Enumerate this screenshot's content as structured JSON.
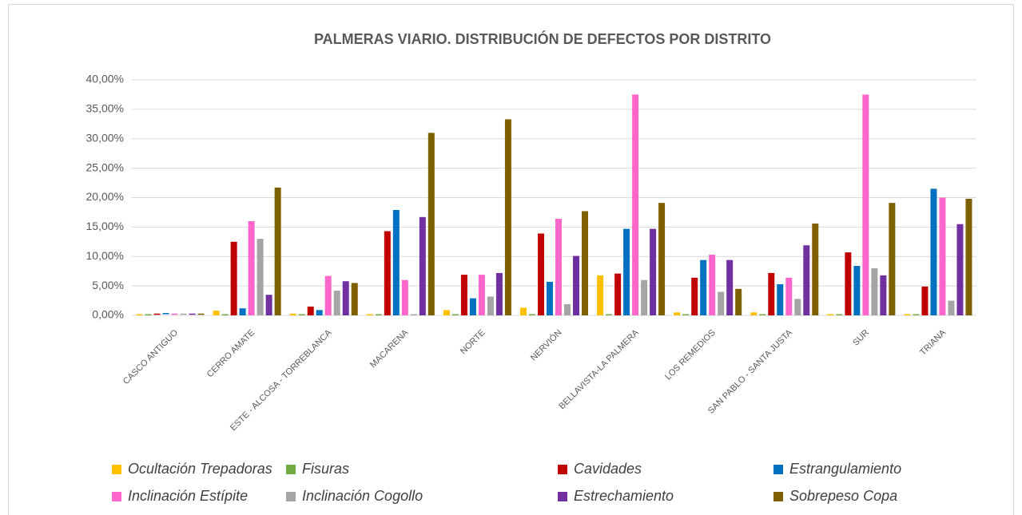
{
  "chart_data": {
    "type": "bar",
    "title": "PALMERAS VIARIO. DISTRIBUCIÓN DE DEFECTOS POR DISTRITO",
    "categories": [
      "CASCO ANTIGUO",
      "CERRO AMATE",
      "ESTE - ALCOSA - TORREBLANCA",
      "MACARENA",
      "NORTE",
      "NERVIÓN",
      "BELLAVISTA-LA PALMERA",
      "LOS REMEDIOS",
      "SAN PABLO - SANTA JUSTA",
      "SUR",
      "TRIANA"
    ],
    "series": [
      {
        "name": "Ocultación Trepadoras",
        "color": "#ffc000",
        "values": [
          0,
          0.8,
          0.3,
          0,
          0.9,
          1.3,
          6.8,
          0.5,
          0.5,
          0,
          0
        ]
      },
      {
        "name": "Fisuras",
        "color": "#70ad47",
        "values": [
          0,
          0,
          0,
          0,
          0,
          0,
          0,
          0,
          0,
          0,
          0
        ]
      },
      {
        "name": "Cavidades",
        "color": "#c00000",
        "values": [
          0.1,
          12.5,
          1.5,
          14.3,
          6.9,
          13.9,
          7.1,
          6.4,
          7.2,
          10.7,
          4.9
        ]
      },
      {
        "name": "Estrangulamiento",
        "color": "#0070c0",
        "values": [
          0.2,
          1.2,
          0.9,
          17.9,
          2.9,
          5.7,
          14.7,
          9.4,
          5.3,
          8.4,
          21.5
        ]
      },
      {
        "name": "Inclinación Estípite",
        "color": "#ff66cc",
        "values": [
          0.1,
          16,
          6.7,
          6,
          6.9,
          16.4,
          37.5,
          10.3,
          6.4,
          37.5,
          20
        ]
      },
      {
        "name": "Inclinación Cogollo",
        "color": "#a5a5a5",
        "values": [
          0.1,
          13,
          4.2,
          0,
          3.2,
          1.9,
          6,
          4,
          2.8,
          8,
          2.5
        ]
      },
      {
        "name": "Estrechamiento",
        "color": "#7030a0",
        "values": [
          0.1,
          3.5,
          5.8,
          16.7,
          7.2,
          10.1,
          14.7,
          9.4,
          11.9,
          6.8,
          15.5
        ]
      },
      {
        "name": "Sobrepeso Copa",
        "color": "#7f6000",
        "values": [
          0.1,
          21.7,
          5.5,
          31,
          33.3,
          17.7,
          19.1,
          4.5,
          15.6,
          19.1,
          19.8
        ]
      }
    ],
    "ylim": [
      0,
      40
    ],
    "yticks": [
      {
        "value": 0,
        "label": "0,00%"
      },
      {
        "value": 5,
        "label": "5,00%"
      },
      {
        "value": 10,
        "label": "10,00%"
      },
      {
        "value": 15,
        "label": "15,00%"
      },
      {
        "value": 20,
        "label": "20,00%"
      },
      {
        "value": 25,
        "label": "25,00%"
      },
      {
        "value": 30,
        "label": "30,00%"
      },
      {
        "value": 35,
        "label": "35,00%"
      },
      {
        "value": 40,
        "label": "40,00%"
      }
    ],
    "grid": true
  }
}
